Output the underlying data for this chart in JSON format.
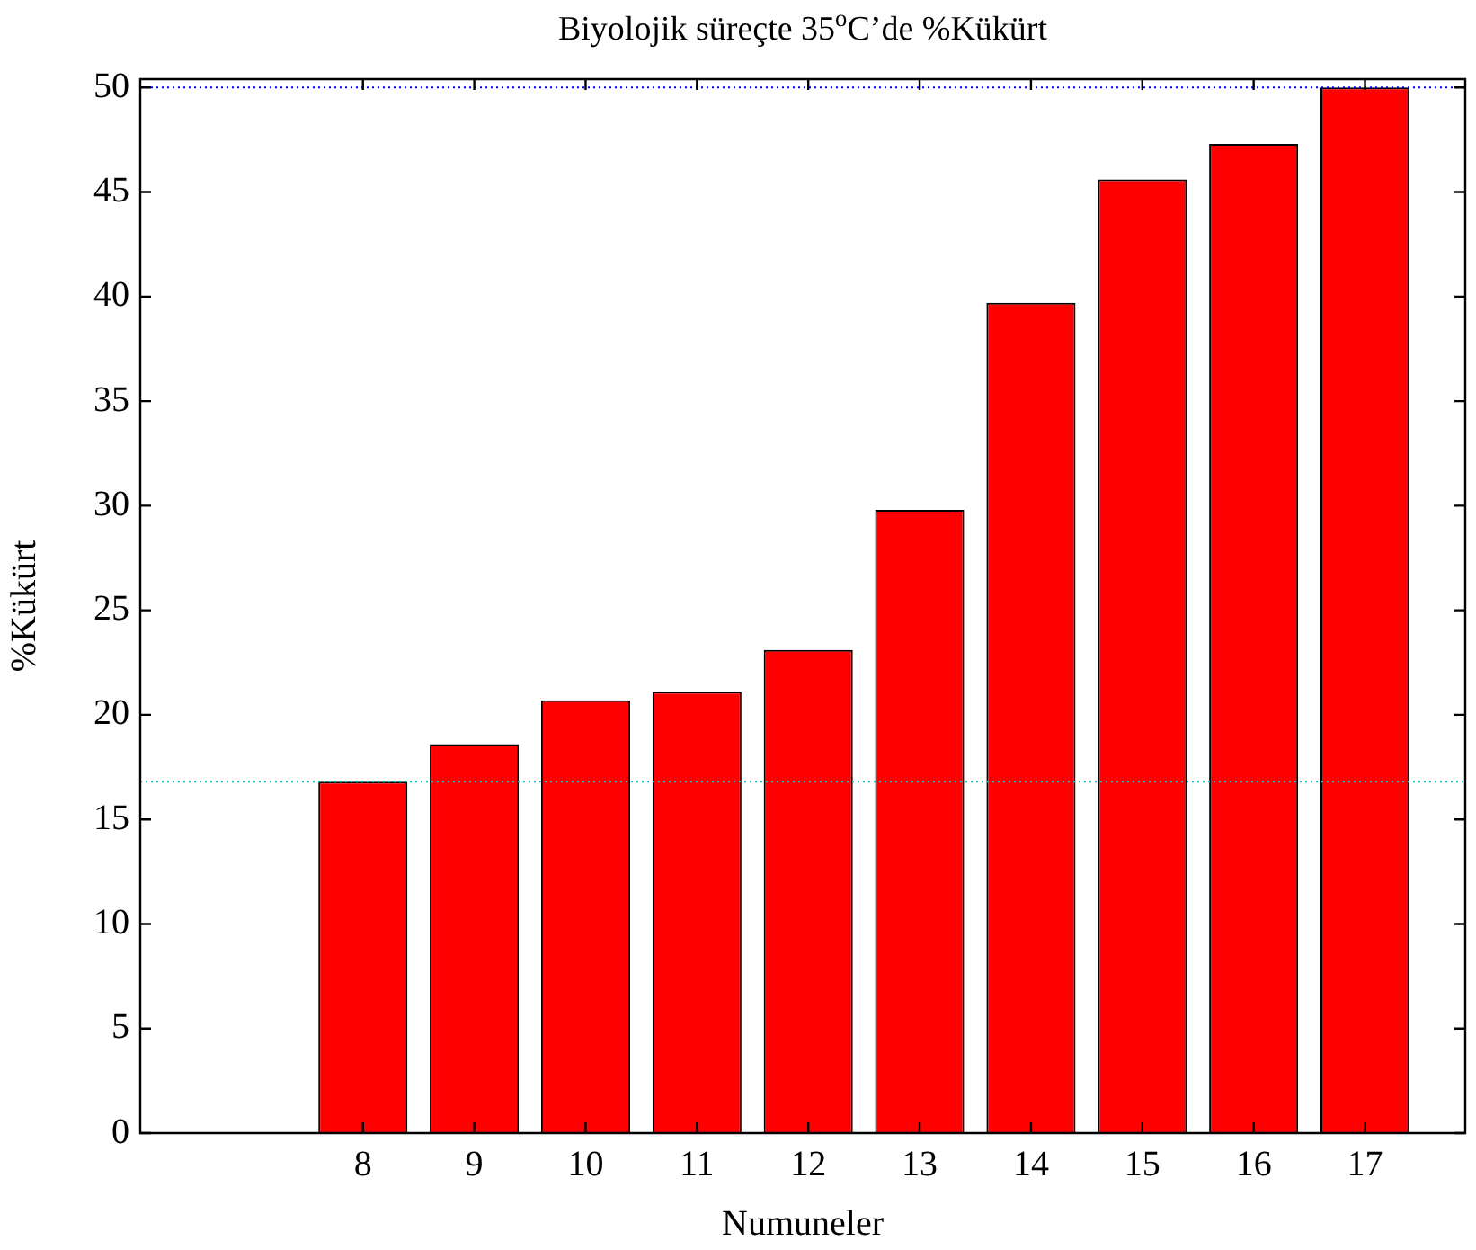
{
  "chart_data": {
    "type": "bar",
    "title": "Biyolojik süreçte 35$^{o}$C’de %Kükürt",
    "xlabel": "Numuneler",
    "ylabel": "%Kükürt",
    "x": [
      8,
      9,
      10,
      11,
      12,
      13,
      14,
      15,
      16,
      17
    ],
    "values": [
      16.8,
      18.6,
      20.7,
      21.1,
      23.1,
      29.8,
      39.7,
      45.6,
      47.3,
      50
    ],
    "color": "#ff0000",
    "xlim": [
      6,
      17.9
    ],
    "xticks": [
      8,
      9,
      10,
      11,
      12,
      13,
      14,
      15,
      16,
      17
    ],
    "ylim": [
      0,
      50.4
    ],
    "yticks": [
      0,
      5,
      10,
      15,
      20,
      25,
      30,
      35,
      40,
      45,
      50
    ],
    "ref_lines": [
      {
        "axis": "y",
        "value": 16.8,
        "color": "#00cccc",
        "line_style": "dotted"
      },
      {
        "axis": "y",
        "value": 50,
        "color": "#0000ff",
        "line_style": "dotted"
      }
    ],
    "grid": false,
    "legend": false
  }
}
